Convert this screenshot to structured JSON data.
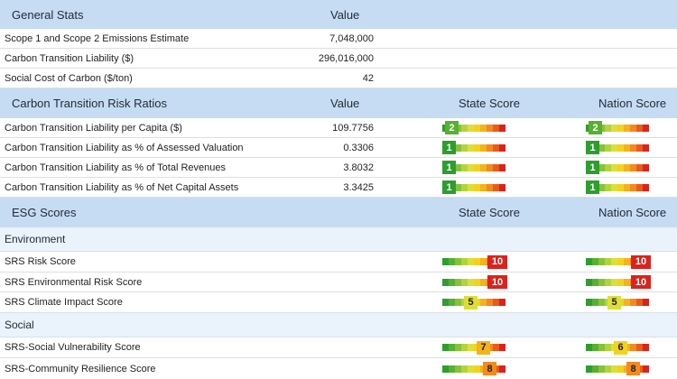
{
  "general": {
    "header": {
      "title": "General Stats",
      "value": "Value"
    },
    "rows": [
      {
        "label": "Scope 1 and Scope 2 Emissions Estimate",
        "value": "7,048,000"
      },
      {
        "label": "Carbon Transition Liability ($)",
        "value": "296,016,000"
      },
      {
        "label": "Social Cost of Carbon ($/ton)",
        "value": "42"
      }
    ]
  },
  "ratios": {
    "header": {
      "title": "Carbon Transition Risk Ratios",
      "value": "Value",
      "state": "State Score",
      "nation": "Nation Score"
    },
    "rows": [
      {
        "label": "Carbon Transition Liability per Capita ($)",
        "value": "109.7756",
        "state": "2",
        "nation": "2"
      },
      {
        "label": "Carbon Transition Liability as % of Assessed Valuation",
        "value": "0.3306",
        "state": "1",
        "nation": "1"
      },
      {
        "label": "Carbon Transition Liability as % of Total Revenues",
        "value": "3.8032",
        "state": "1",
        "nation": "1"
      },
      {
        "label": "Carbon Transition Liability as % of Net Capital Assets",
        "value": "3.3425",
        "state": "1",
        "nation": "1"
      }
    ]
  },
  "esg": {
    "header": {
      "title": "ESG Scores",
      "state": "State Score",
      "nation": "Nation Score"
    },
    "environment": {
      "title": "Environment",
      "rows": [
        {
          "label": "SRS Risk Score",
          "state": "10",
          "nation": "10"
        },
        {
          "label": "SRS Environmental Risk Score",
          "state": "10",
          "nation": "10"
        },
        {
          "label": "SRS Climate Impact Score",
          "state": "5",
          "nation": "5"
        }
      ]
    },
    "social": {
      "title": "Social",
      "rows": [
        {
          "label": "SRS-Social Vulnerability Score",
          "state": "7",
          "nation": "6"
        },
        {
          "label": "SRS-Community Resilience Score",
          "state": "8",
          "nation": "8"
        }
      ]
    }
  },
  "colors": {
    "scale": [
      "#2e9e2e",
      "#58b030",
      "#86c23a",
      "#b3d33c",
      "#dede3a",
      "#f2d21e",
      "#f4b21c",
      "#f28a1d",
      "#ea5a1e",
      "#d9231e"
    ],
    "header_bg": "#c6dcf3",
    "subheader_bg": "#eaf2fb"
  }
}
